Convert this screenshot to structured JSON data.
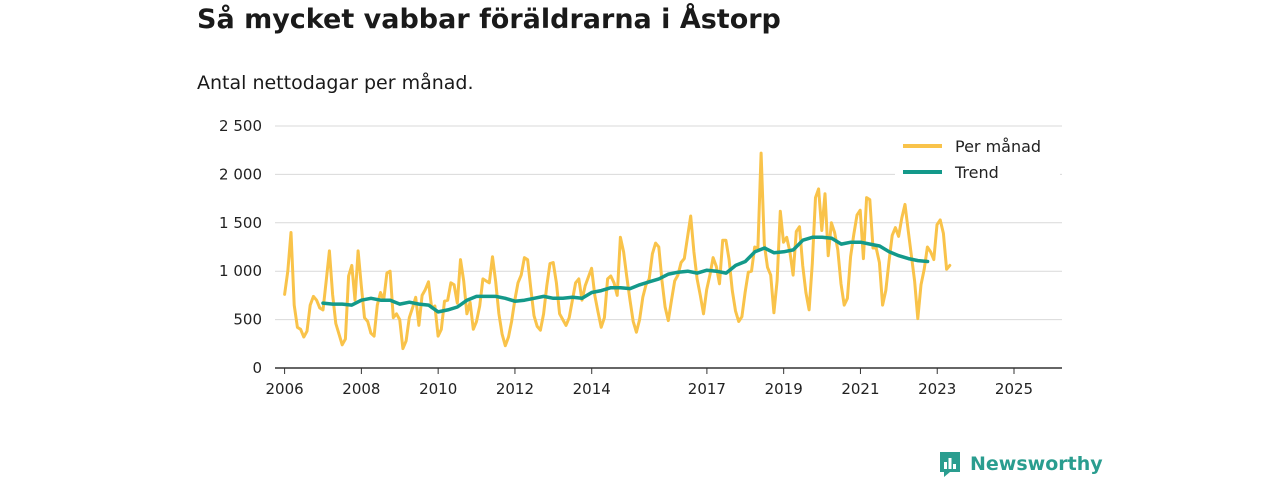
{
  "header": {
    "title": "Så mycket vabbar föräldrarna i Åstorp",
    "subtitle": "Antal nettodagar per månad."
  },
  "brand": {
    "name": "Newsworthy",
    "logo_icon": "newsworthy-chart-bubble-icon"
  },
  "colors": {
    "monthly": "#f9c34a",
    "trend": "#13998a",
    "grid": "#d9d9d9",
    "axis": "#333333"
  },
  "chart_data": {
    "type": "line",
    "title": "Så mycket vabbar föräldrarna i Åstorp",
    "subtitle": "Antal nettodagar per månad.",
    "xlabel": "",
    "ylabel": "",
    "ylim": [
      0,
      2500
    ],
    "xlim": [
      2005.75,
      2026.25
    ],
    "y_ticks": [
      {
        "value": 0,
        "label": "0"
      },
      {
        "value": 500,
        "label": "500"
      },
      {
        "value": 1000,
        "label": "1 000"
      },
      {
        "value": 1500,
        "label": "1 500"
      },
      {
        "value": 2000,
        "label": "2 000"
      },
      {
        "value": 2500,
        "label": "2 500"
      }
    ],
    "x_ticks": [
      {
        "value": 2006,
        "label": "2006"
      },
      {
        "value": 2008,
        "label": "2008"
      },
      {
        "value": 2010,
        "label": "2010"
      },
      {
        "value": 2012,
        "label": "2012"
      },
      {
        "value": 2014,
        "label": "2014"
      },
      {
        "value": 2017,
        "label": "2017"
      },
      {
        "value": 2019,
        "label": "2019"
      },
      {
        "value": 2021,
        "label": "2021"
      },
      {
        "value": 2023,
        "label": "2023"
      },
      {
        "value": 2025,
        "label": "2025"
      }
    ],
    "grid": true,
    "legend_position": "top-right",
    "series": [
      {
        "name": "Per månad",
        "start": 2006.0,
        "step": 0.0833,
        "values": [
          760,
          1000,
          1400,
          650,
          420,
          400,
          320,
          380,
          650,
          740,
          700,
          620,
          600,
          900,
          1210,
          760,
          460,
          350,
          240,
          300,
          950,
          1060,
          700,
          1210,
          850,
          520,
          480,
          360,
          330,
          650,
          780,
          700,
          980,
          1000,
          520,
          560,
          500,
          200,
          280,
          520,
          620,
          730,
          440,
          750,
          810,
          890,
          620,
          640,
          330,
          400,
          690,
          700,
          880,
          860,
          670,
          1120,
          900,
          560,
          680,
          400,
          480,
          640,
          920,
          900,
          880,
          1150,
          890,
          560,
          350,
          230,
          320,
          480,
          700,
          880,
          960,
          1140,
          1120,
          820,
          540,
          430,
          390,
          560,
          850,
          1080,
          1090,
          880,
          560,
          500,
          440,
          520,
          700,
          880,
          920,
          700,
          850,
          940,
          1030,
          750,
          580,
          420,
          520,
          920,
          950,
          880,
          750,
          1350,
          1200,
          940,
          700,
          480,
          370,
          500,
          730,
          860,
          920,
          1180,
          1290,
          1250,
          900,
          630,
          490,
          700,
          900,
          960,
          1090,
          1130,
          1350,
          1570,
          1200,
          920,
          750,
          560,
          810,
          960,
          1140,
          1050,
          870,
          1320,
          1320,
          1120,
          800,
          590,
          480,
          530,
          780,
          990,
          1000,
          1250,
          1240,
          2220,
          1280,
          1040,
          960,
          570,
          900,
          1620,
          1300,
          1350,
          1200,
          960,
          1410,
          1460,
          1060,
          780,
          600,
          1080,
          1760,
          1850,
          1420,
          1800,
          1160,
          1500,
          1400,
          1220,
          870,
          650,
          720,
          1150,
          1380,
          1580,
          1630,
          1130,
          1760,
          1740,
          1240,
          1240,
          1090,
          650,
          800,
          1100,
          1370,
          1450,
          1360,
          1550,
          1690,
          1420,
          1160,
          900,
          510,
          860,
          1020,
          1250,
          1200,
          1120,
          1480,
          1530,
          1390,
          1020,
          1060
        ]
      },
      {
        "name": "Trend",
        "start": 2007.0,
        "step": 0.25,
        "values": [
          670,
          660,
          660,
          650,
          700,
          720,
          700,
          700,
          660,
          680,
          660,
          650,
          580,
          600,
          630,
          700,
          740,
          740,
          740,
          720,
          690,
          700,
          720,
          740,
          720,
          720,
          730,
          720,
          780,
          800,
          830,
          830,
          820,
          860,
          890,
          920,
          970,
          990,
          1000,
          980,
          1010,
          1000,
          980,
          1060,
          1100,
          1200,
          1240,
          1190,
          1200,
          1220,
          1320,
          1350,
          1350,
          1340,
          1280,
          1300,
          1300,
          1280,
          1260,
          1200,
          1160,
          1130,
          1110,
          1100
        ]
      }
    ]
  }
}
